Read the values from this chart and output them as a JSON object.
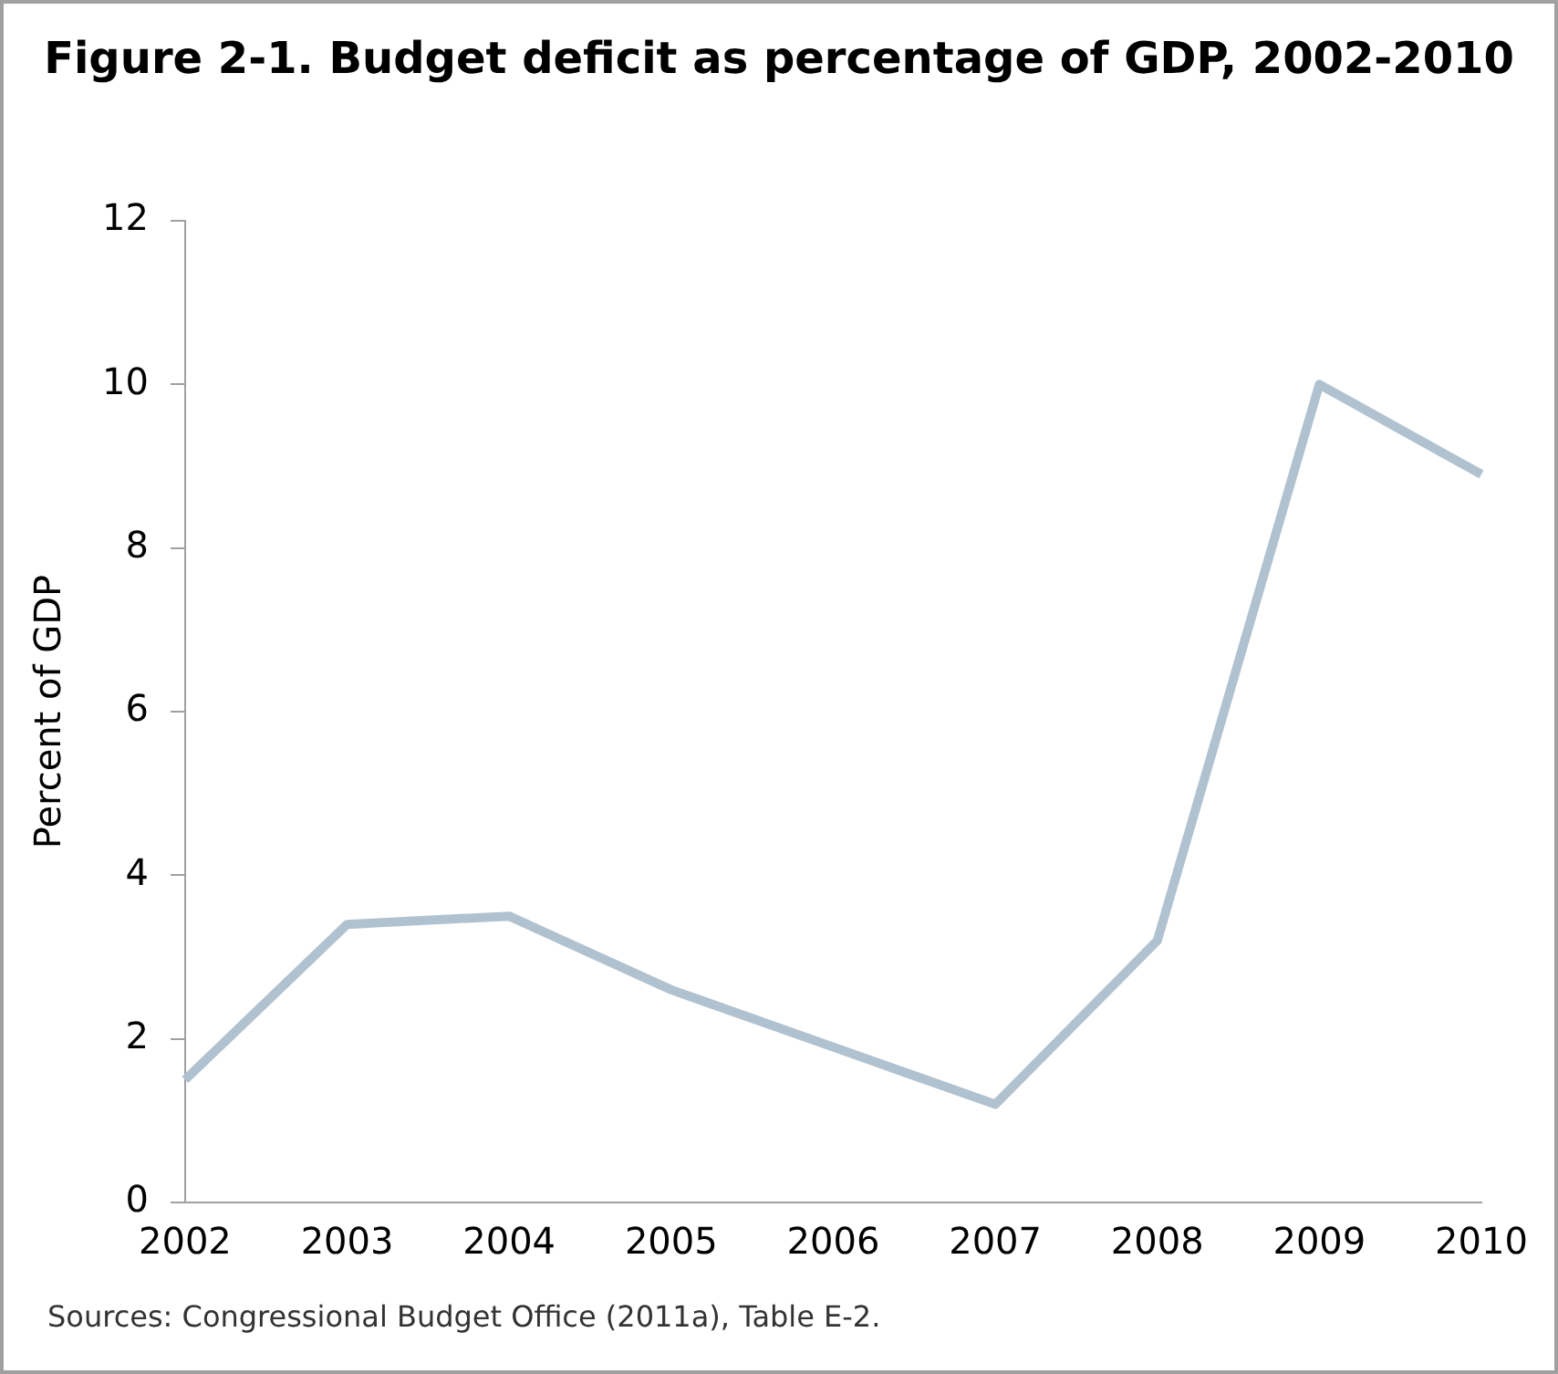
{
  "chart_data": {
    "type": "line",
    "title": "Figure 2-1. Budget deficit as percentage of GDP, 2002-2010",
    "ylabel": "Percent of GDP",
    "categories": [
      "2002",
      "2003",
      "2004",
      "2005",
      "2006",
      "2007",
      "2008",
      "2009",
      "2010"
    ],
    "series": [
      {
        "color": "#b0c1cf",
        "values": [
          1.5,
          3.4,
          3.5,
          2.6,
          1.9,
          1.2,
          3.2,
          10.0,
          8.9
        ]
      }
    ],
    "ylim": [
      0,
      12
    ],
    "yticks": [
      0,
      2,
      4,
      6,
      8,
      10,
      12
    ],
    "grid": false,
    "legend": false,
    "marker": "none",
    "line_style": "solid",
    "annotations": [
      "Sources: Congressional Budget Office (2011a), Table E-2."
    ]
  }
}
